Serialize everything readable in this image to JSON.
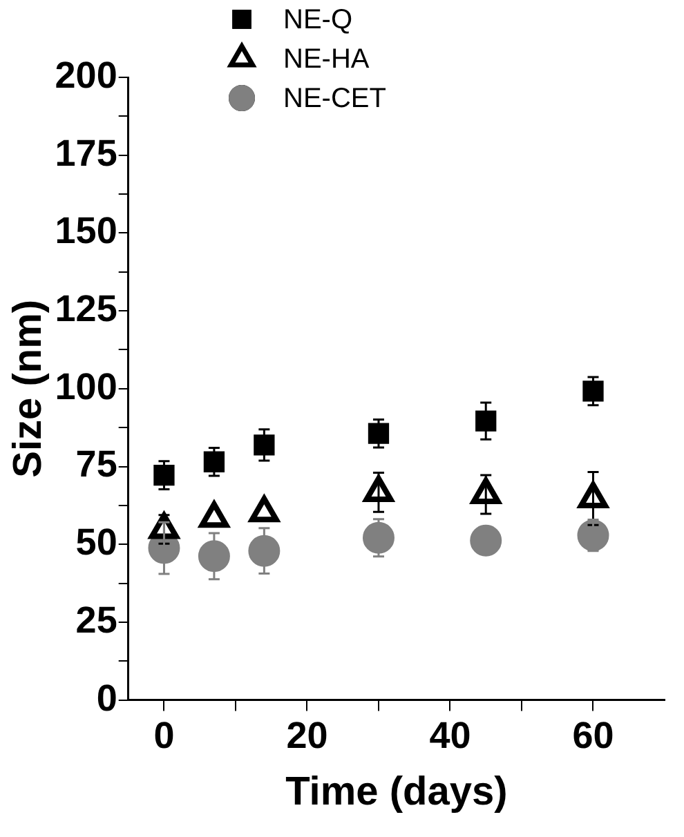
{
  "chart_data": {
    "type": "scatter",
    "xlabel": "Time (days)",
    "ylabel": "Size (nm)",
    "legend": "top",
    "grid": false,
    "xlim": [
      -5,
      70
    ],
    "ylim": [
      0,
      200
    ],
    "xticks": [
      0,
      {
        "value": 10,
        "label": null
      },
      20,
      {
        "value": 30,
        "label": null
      },
      40,
      {
        "value": 50,
        "label": null
      },
      60
    ],
    "yticks": [
      0,
      {
        "value": 12.5,
        "label": null
      },
      25,
      {
        "value": 37.5,
        "label": null
      },
      50,
      {
        "value": 62.5,
        "label": null
      },
      75,
      {
        "value": 87.5,
        "label": null
      },
      100,
      {
        "value": 112.5,
        "label": null
      },
      125,
      {
        "value": 137.5,
        "label": null
      },
      150,
      {
        "value": 162.5,
        "label": null
      },
      175,
      {
        "value": 187.5,
        "label": null
      },
      200
    ],
    "x": [
      0,
      7,
      14,
      30,
      45,
      60
    ],
    "series": [
      {
        "name": "NE-Q",
        "color": "#000000",
        "marker": "square",
        "values": [
          72.2,
          76.5,
          81.9,
          85.6,
          89.6,
          99.2
        ],
        "errors": [
          4.5,
          4.5,
          5,
          4.5,
          5.9,
          4.5
        ]
      },
      {
        "name": "NE-HA",
        "color": "#000000",
        "marker": "triangle",
        "values": [
          54.8,
          58.4,
          60.2,
          66.7,
          66.0,
          64.7
        ],
        "errors": [
          4.6,
          null,
          null,
          6.3,
          6.2,
          8.5
        ]
      },
      {
        "name": "NE-CET",
        "color": "#808080",
        "marker": "circle",
        "values": [
          48.8,
          46.2,
          47.9,
          52.1,
          51.2,
          52.9
        ],
        "errors": [
          8.3,
          7.4,
          7.3,
          6,
          null,
          5
        ]
      }
    ]
  }
}
